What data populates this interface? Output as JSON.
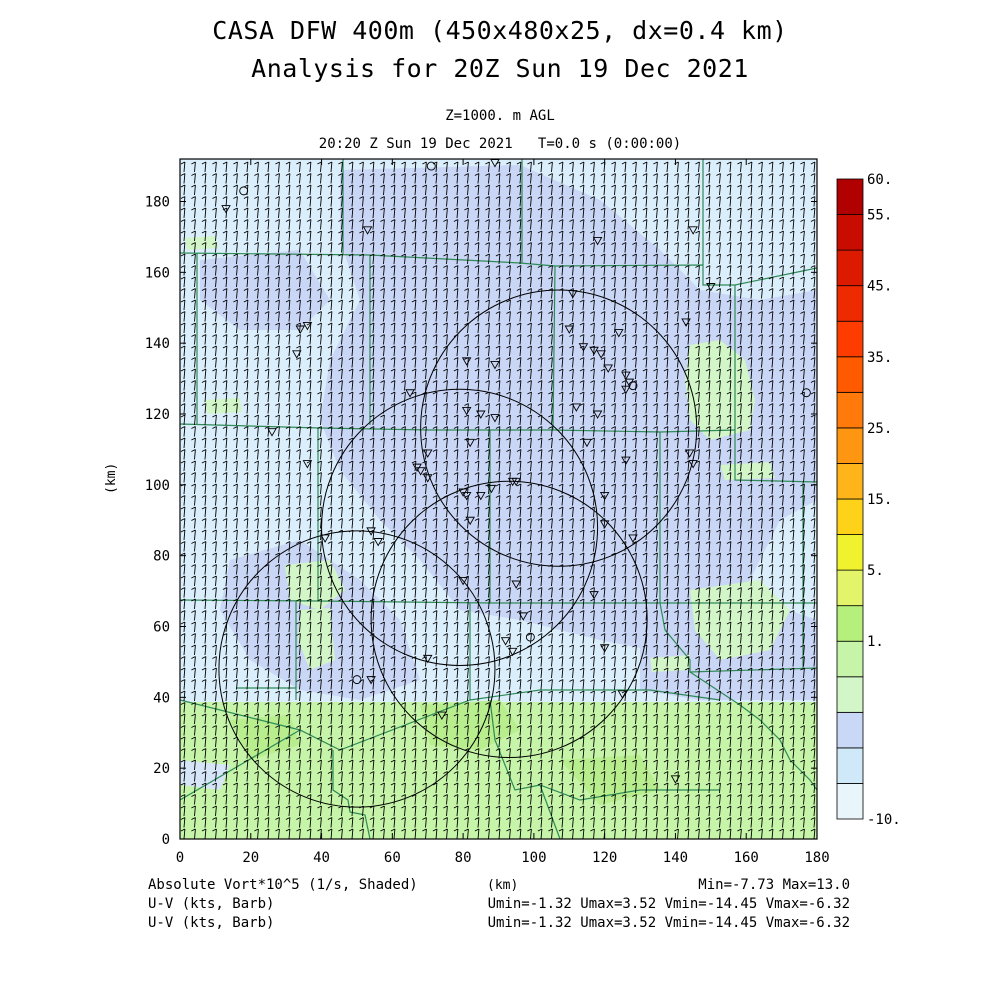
{
  "title": {
    "line1": "CASA DFW 400m (450x480x25, dx=0.4 km)",
    "line2": "Analysis for 20Z Sun 19 Dec 2021",
    "level": "Z=1000. m AGL",
    "time": "20:20 Z Sun 19 Dec 2021   T=0.0 s (0:00:00)"
  },
  "axes": {
    "x_label": "(km)",
    "y_label": "(km)",
    "x_range": [
      0,
      180
    ],
    "y_range": [
      0,
      192
    ],
    "x_ticks": [
      "0",
      "20",
      "40",
      "60",
      "80",
      "100",
      "120",
      "140",
      "160",
      "180"
    ],
    "y_ticks": [
      "0",
      "20",
      "40",
      "60",
      "80",
      "100",
      "120",
      "140",
      "160",
      "180"
    ]
  },
  "colorbar": {
    "labels": [
      "60.",
      "55.",
      "45.",
      "35.",
      "25.",
      "15.",
      "5.",
      "1.",
      "-10."
    ],
    "colors": [
      "#e8f6fb",
      "#cfe9f8",
      "#c8d8f6",
      "#d2f6c8",
      "#c6f4a8",
      "#b6f07c",
      "#e4f46a",
      "#f0f22e",
      "#ffd21a",
      "#ffb41a",
      "#ff9612",
      "#ff7a0a",
      "#ff5a00",
      "#ff3c00",
      "#ee2a00",
      "#dc1a00",
      "#c80c00",
      "#b00000"
    ]
  },
  "footer": {
    "field1": "Absolute Vort*10^5 (1/s, Shaded)",
    "stats1": "Min=-7.73 Max=13.0",
    "field2": "U-V (kts, Barb)",
    "stats2": "Umin=-1.32 Umax=3.52 Vmin=-14.45 Vmax=-6.32",
    "field3": "U-V (kts, Barb)",
    "stats3": "Umin=-1.32 Umax=3.52 Vmin=-14.45 Vmax=-6.32"
  },
  "colors": {
    "background_field": "#dbeefb",
    "county_lines": "#2e8b57",
    "range_rings": "#000000"
  },
  "map_data": {
    "radar_rings_km": [
      {
        "cx": 107,
        "cy": 116,
        "r": 39
      },
      {
        "cx": 79,
        "cy": 88,
        "r": 39
      },
      {
        "cx": 93,
        "cy": 62,
        "r": 39
      },
      {
        "cx": 50,
        "cy": 48,
        "r": 39
      }
    ],
    "wind_barb": {
      "u_kts": 1.5,
      "v_kts": -10
    }
  }
}
